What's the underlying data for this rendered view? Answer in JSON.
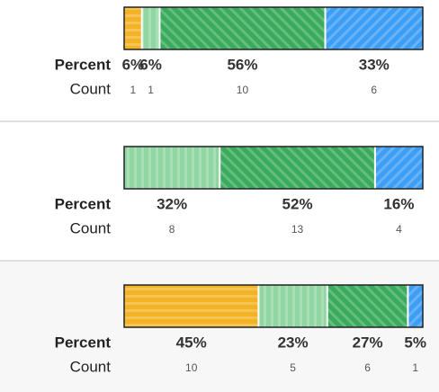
{
  "row_labels": {
    "percent": "Percent",
    "count": "Count"
  },
  "panels": [
    {
      "segments": [
        {
          "value": 6,
          "value_label": "6%",
          "count": 1,
          "color": "#f4b324",
          "stripes": "horizontal"
        },
        {
          "value": 6,
          "value_label": "6%",
          "count": 1,
          "color": "#8fd6a3",
          "stripes": "vertical"
        },
        {
          "value": 56,
          "value_label": "56%",
          "count": 10,
          "color": "#3aaa5c",
          "stripes": "diagonal"
        },
        {
          "value": 33,
          "value_label": "33%",
          "count": 6,
          "color": "#3d9ef5",
          "stripes": "antidiagonal"
        }
      ]
    },
    {
      "segments": [
        {
          "value": 32,
          "value_label": "32%",
          "count": 8,
          "color": "#8fd6a3",
          "stripes": "vertical"
        },
        {
          "value": 52,
          "value_label": "52%",
          "count": 13,
          "color": "#3aaa5c",
          "stripes": "diagonal"
        },
        {
          "value": 16,
          "value_label": "16%",
          "count": 4,
          "color": "#3d9ef5",
          "stripes": "antidiagonal"
        }
      ]
    },
    {
      "segments": [
        {
          "value": 45,
          "value_label": "45%",
          "count": 10,
          "color": "#f4b324",
          "stripes": "horizontal"
        },
        {
          "value": 23,
          "value_label": "23%",
          "count": 5,
          "color": "#8fd6a3",
          "stripes": "vertical"
        },
        {
          "value": 27,
          "value_label": "27%",
          "count": 6,
          "color": "#3aaa5c",
          "stripes": "diagonal"
        },
        {
          "value": 5,
          "value_label": "5%",
          "count": 1,
          "color": "#3d9ef5",
          "stripes": "antidiagonal"
        }
      ]
    }
  ]
}
